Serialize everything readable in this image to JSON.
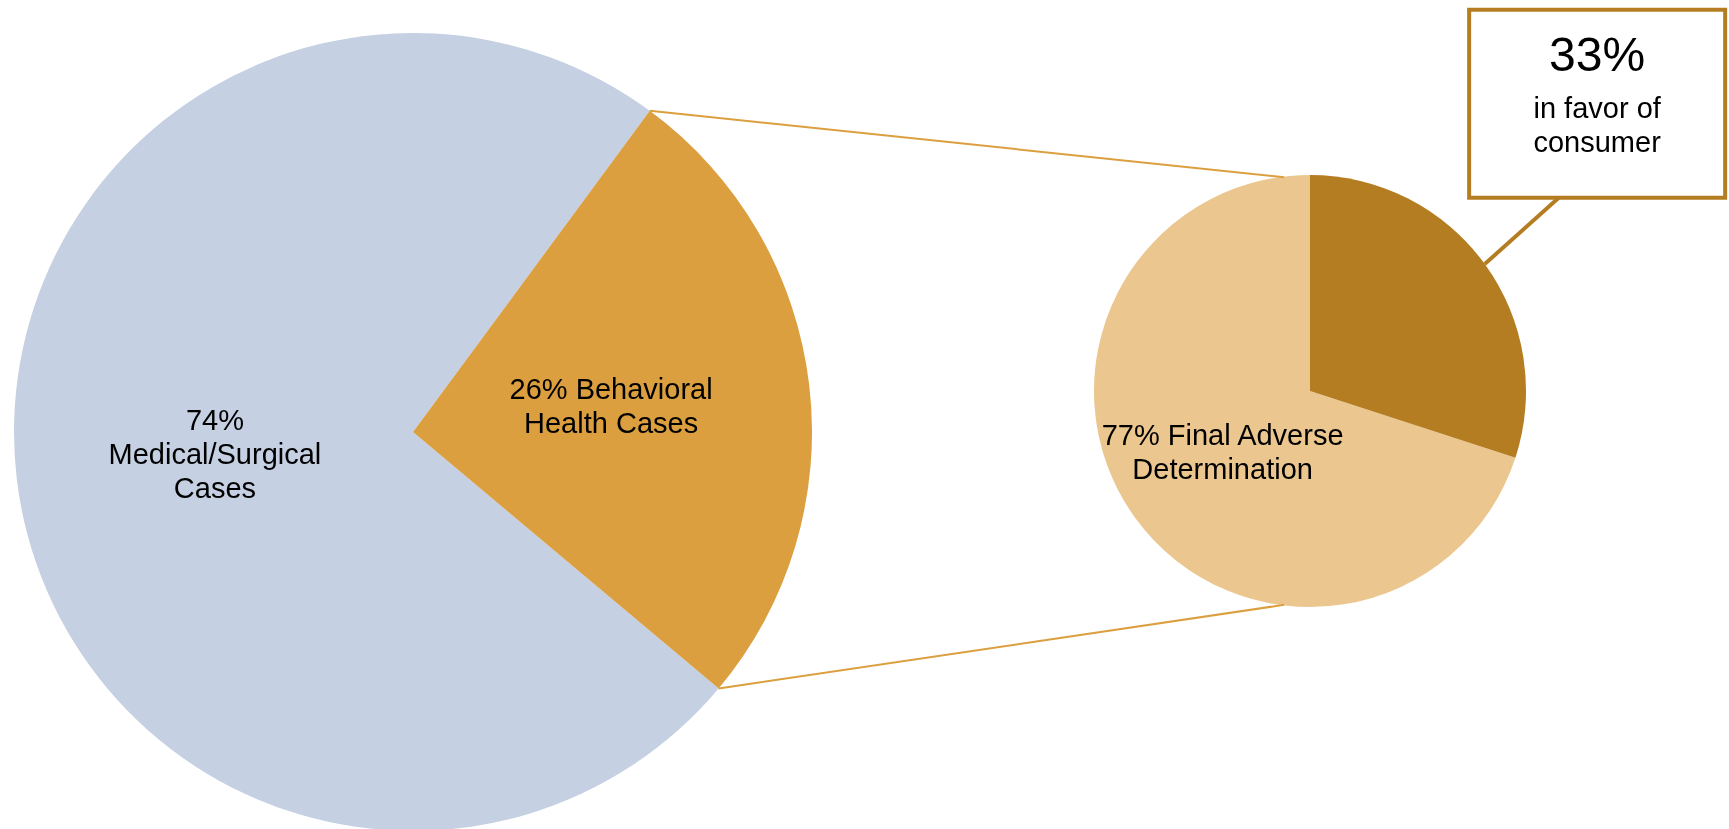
{
  "chart_data": [
    {
      "type": "pie",
      "categories": [
        "Medical/Surgical Cases",
        "Behavioral Health Cases"
      ],
      "values": [
        74,
        26
      ],
      "value_labels": [
        "74%",
        "26%"
      ],
      "colors": [
        "#c5d0e2",
        "#dc9f40"
      ]
    },
    {
      "type": "pie",
      "categories": [
        "Final Adverse Determination",
        "in favor of consumer"
      ],
      "values": [
        77,
        33
      ],
      "value_labels": [
        "77%",
        "33%"
      ],
      "colors": [
        "#ebc78f",
        "#b57d22"
      ]
    }
  ]
}
